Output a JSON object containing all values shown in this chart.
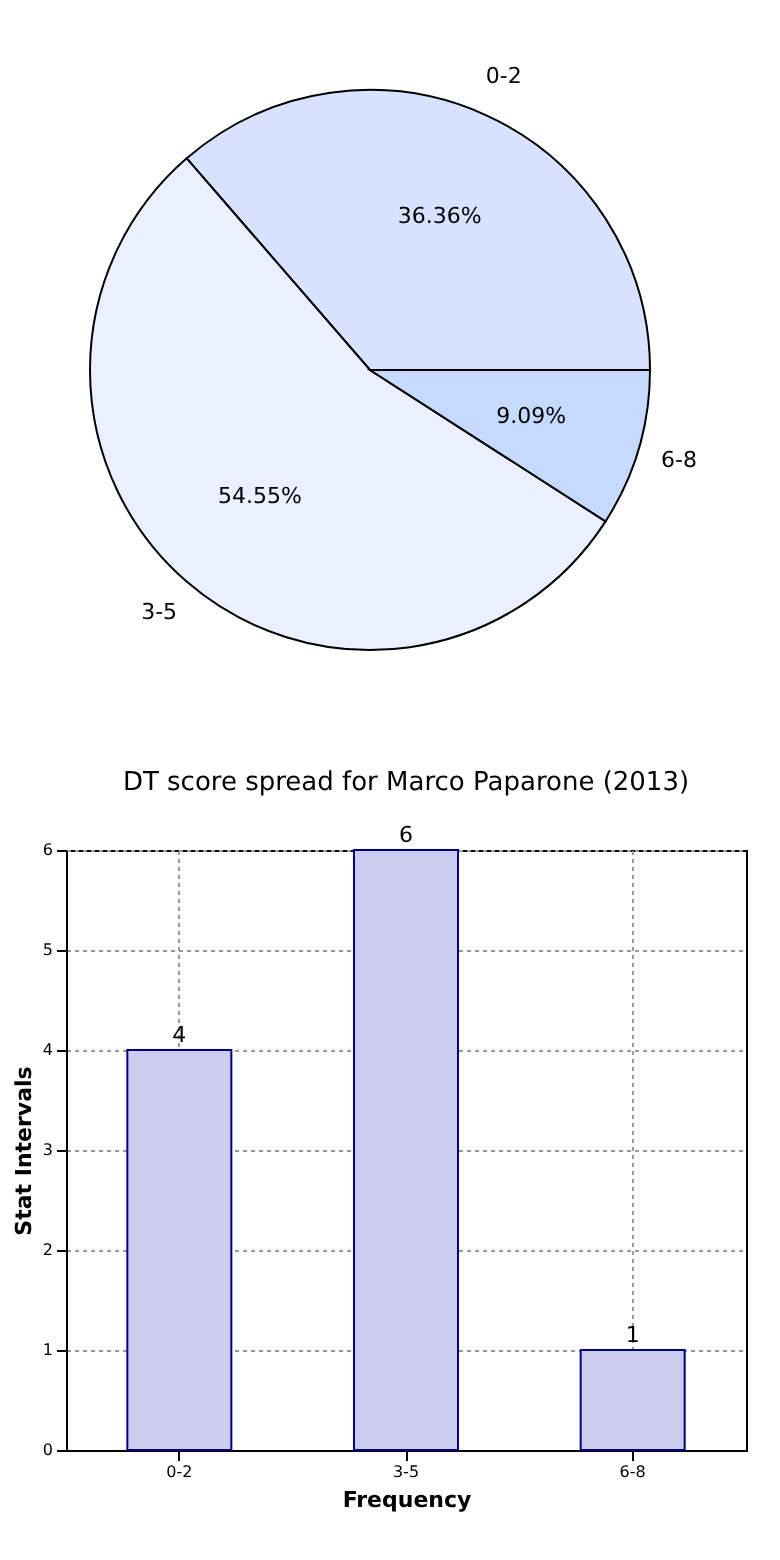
{
  "chart_data": [
    {
      "type": "pie",
      "categories": [
        "0-2",
        "3-5",
        "6-8"
      ],
      "values": [
        36.36,
        54.55,
        9.09
      ],
      "colors": [
        "#d6e2ff",
        "#eaf0ff",
        "#c6d9ff"
      ],
      "value_labels": [
        "36.36%",
        "54.55%",
        "9.09%"
      ]
    },
    {
      "type": "bar",
      "title": "DT score spread for Marco Paparone (2013)",
      "xlabel": "Frequency",
      "ylabel": "Stat Intervals",
      "categories": [
        "0-2",
        "3-5",
        "6-8"
      ],
      "values": [
        4,
        6,
        1
      ],
      "color": "#ccccee",
      "ylim": [
        0,
        6
      ],
      "yticks": [
        0,
        1,
        2,
        3,
        4,
        5,
        6
      ],
      "grid": true,
      "data_labels": true
    }
  ]
}
